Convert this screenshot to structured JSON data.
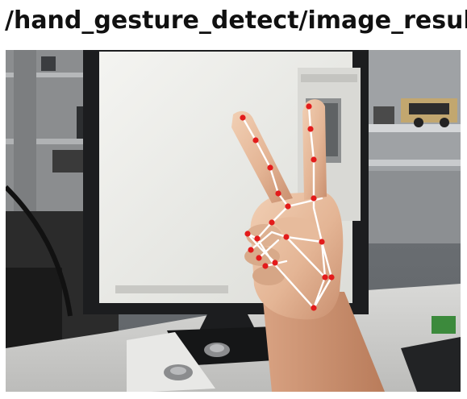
{
  "topic": {
    "title": "/hand_gesture_detect/image_result"
  },
  "image": {
    "label": "hand-landmark-result-image",
    "landmark_color": "#e31b1b",
    "connection_color": "#ffffff",
    "background_scene": "desk with monitor, speakers, and shelf",
    "gesture": "victory (two fingers)"
  }
}
